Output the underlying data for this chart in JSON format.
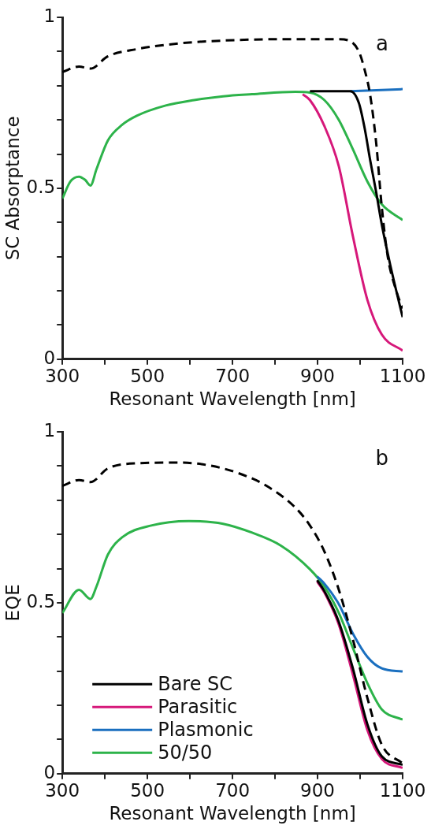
{
  "chart_data": [
    {
      "type": "line",
      "xlabel": "Resonant Wavelength [nm]",
      "ylabel": "SC Absorptance",
      "annotations": [
        "a"
      ],
      "marker": "none",
      "legend": false,
      "xlim": [
        300,
        1100
      ],
      "ylim": [
        0,
        1
      ],
      "xticks": [
        300,
        {
          "value": 400,
          "label": null
        },
        500,
        {
          "value": 600,
          "label": null
        },
        700,
        {
          "value": 800,
          "label": null
        },
        900,
        {
          "value": 1000,
          "label": null
        },
        1100
      ],
      "yticks": [
        0,
        {
          "value": 0.1,
          "label": null
        },
        {
          "value": 0.2,
          "label": null
        },
        {
          "value": 0.3,
          "label": null
        },
        {
          "value": 0.4,
          "label": null
        },
        0.5,
        {
          "value": 0.6,
          "label": null
        },
        {
          "value": 0.7,
          "label": null
        },
        {
          "value": 0.8,
          "label": null
        },
        {
          "value": 0.9,
          "label": null
        },
        1
      ],
      "series": [
        {
          "color": "#000000",
          "line_style": "dashed",
          "x": [
            300,
            339,
            366,
            407,
            475,
            577,
            678,
            814,
            949,
            977,
            997,
            1010,
            1024,
            1038,
            1051,
            1065,
            1085,
            1100
          ],
          "values": [
            0.84,
            0.856,
            0.85,
            0.886,
            0.907,
            0.924,
            0.932,
            0.936,
            0.936,
            0.93,
            0.9,
            0.85,
            0.77,
            0.63,
            0.445,
            0.3,
            0.2,
            0.148
          ]
        },
        {
          "color": "#000000",
          "x": [
            882,
            977,
            997,
            1010,
            1024,
            1038,
            1051,
            1071,
            1100
          ],
          "values": [
            0.784,
            0.784,
            0.75,
            0.68,
            0.58,
            0.487,
            0.394,
            0.275,
            0.123
          ]
        },
        {
          "color": "#d6187a",
          "x": [
            865,
            882,
            916,
            950,
            983,
            1017,
            1051,
            1100
          ],
          "values": [
            0.775,
            0.758,
            0.682,
            0.564,
            0.36,
            0.174,
            0.072,
            0.025
          ]
        },
        {
          "color": "#1a6fbf",
          "x": [
            977,
            1100
          ],
          "values": [
            0.784,
            0.79
          ]
        },
        {
          "color": "#2db34a",
          "x": [
            300,
            319,
            339,
            353,
            366,
            380,
            407,
            441,
            475,
            543,
            610,
            678,
            746,
            848,
            882,
            916,
            950,
            983,
            1017,
            1051,
            1100
          ],
          "values": [
            0.47,
            0.52,
            0.534,
            0.525,
            0.508,
            0.555,
            0.64,
            0.686,
            0.712,
            0.742,
            0.758,
            0.769,
            0.775,
            0.782,
            0.78,
            0.758,
            0.7,
            0.614,
            0.52,
            0.453,
            0.407
          ]
        }
      ]
    },
    {
      "type": "line",
      "xlabel": "Resonant Wavelength [nm]",
      "ylabel": "EQE",
      "annotations": [
        "b"
      ],
      "marker": "none",
      "legend": "bottom left",
      "xlim": [
        300,
        1100
      ],
      "ylim": [
        0,
        1
      ],
      "xticks": [
        300,
        {
          "value": 400,
          "label": null
        },
        500,
        {
          "value": 600,
          "label": null
        },
        700,
        {
          "value": 800,
          "label": null
        },
        900,
        {
          "value": 1000,
          "label": null
        },
        1100
      ],
      "yticks": [
        0,
        {
          "value": 0.1,
          "label": null
        },
        {
          "value": 0.2,
          "label": null
        },
        {
          "value": 0.3,
          "label": null
        },
        {
          "value": 0.4,
          "label": null
        },
        0.5,
        {
          "value": 0.6,
          "label": null
        },
        {
          "value": 0.7,
          "label": null
        },
        {
          "value": 0.8,
          "label": null
        },
        {
          "value": 0.9,
          "label": null
        },
        1
      ],
      "series": [
        {
          "color": "#000000",
          "line_style": "dashed",
          "x": [
            300,
            339,
            366,
            407,
            475,
            577,
            644,
            712,
            780,
            848,
            882,
            916,
            950,
            983,
            1017,
            1051,
            1100
          ],
          "values": [
            0.842,
            0.859,
            0.853,
            0.893,
            0.908,
            0.91,
            0.902,
            0.88,
            0.842,
            0.778,
            0.726,
            0.65,
            0.538,
            0.393,
            0.222,
            0.085,
            0.03
          ]
        },
        {
          "name": "Bare SC",
          "color": "#000000",
          "x": [
            899,
            916,
            950,
            983,
            1017,
            1051,
            1100
          ],
          "values": [
            0.566,
            0.534,
            0.444,
            0.308,
            0.145,
            0.051,
            0.026
          ]
        },
        {
          "name": "Parasitic",
          "color": "#d6187a",
          "x": [
            899,
            916,
            950,
            983,
            1017,
            1051,
            1100
          ],
          "values": [
            0.562,
            0.53,
            0.436,
            0.29,
            0.128,
            0.043,
            0.017
          ]
        },
        {
          "name": "Plasmonic",
          "color": "#1a6fbf",
          "x": [
            899,
            916,
            950,
            983,
            1017,
            1051,
            1100
          ],
          "values": [
            0.577,
            0.556,
            0.496,
            0.41,
            0.342,
            0.308,
            0.299
          ]
        },
        {
          "name": "50/50",
          "color": "#2db34a",
          "x": [
            300,
            339,
            366,
            380,
            407,
            441,
            509,
            597,
            678,
            746,
            814,
            882,
            916,
            950,
            983,
            1017,
            1051,
            1100
          ],
          "values": [
            0.47,
            0.538,
            0.511,
            0.547,
            0.641,
            0.692,
            0.726,
            0.739,
            0.731,
            0.705,
            0.667,
            0.598,
            0.547,
            0.47,
            0.368,
            0.265,
            0.188,
            0.158
          ]
        }
      ]
    }
  ]
}
